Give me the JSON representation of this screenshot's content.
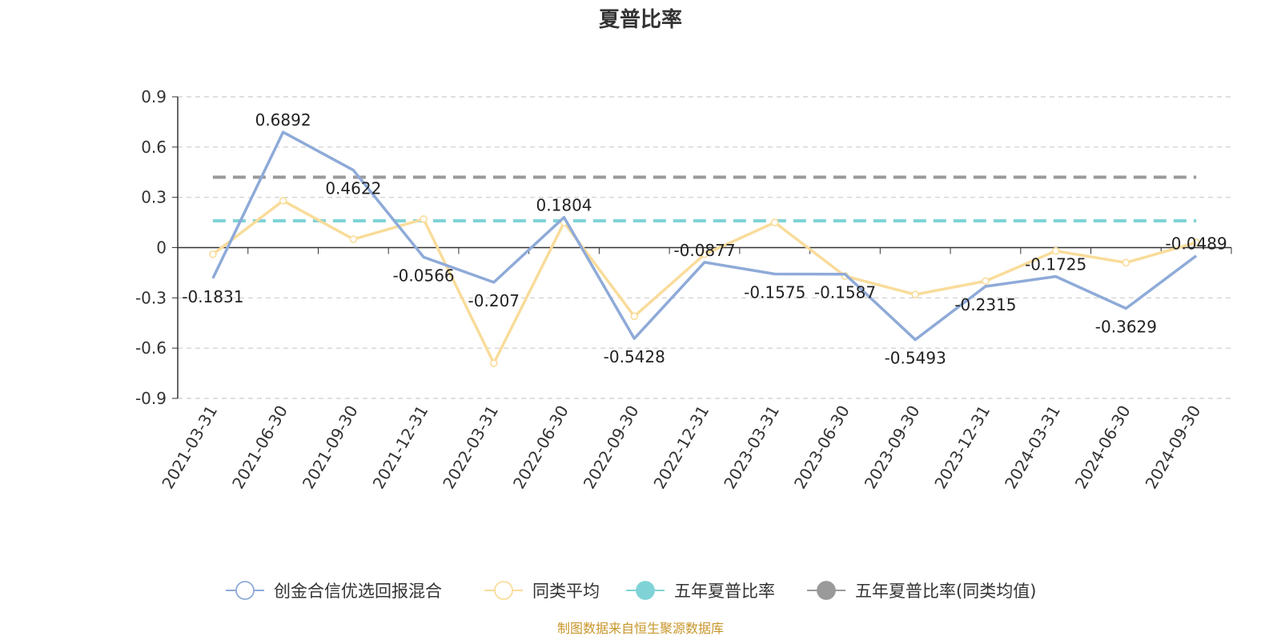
{
  "chart_data": {
    "type": "line",
    "title": "夏普比率",
    "xlabel": "",
    "ylabel": "",
    "ylim": [
      -0.9,
      0.9
    ],
    "yticks": [
      "0.9",
      "0.6",
      "0.3",
      "0",
      "-0.3",
      "-0.6",
      "-0.9"
    ],
    "ytick_values": [
      0.9,
      0.6,
      0.3,
      0,
      -0.3,
      -0.6,
      -0.9
    ],
    "grid": true,
    "legend_position": "bottom-center",
    "categories": [
      "2021-03-31",
      "2021-06-30",
      "2021-09-30",
      "2021-12-31",
      "2022-03-31",
      "2022-06-30",
      "2022-09-30",
      "2022-12-31",
      "2023-03-31",
      "2023-06-30",
      "2023-09-30",
      "2023-12-31",
      "2024-03-31",
      "2024-06-30",
      "2024-09-30"
    ],
    "series": [
      {
        "name": "创金合信优选回报混合",
        "color": "#8eaad8",
        "values": [
          -0.1831,
          0.6892,
          0.4622,
          -0.0566,
          -0.207,
          0.1804,
          -0.5428,
          -0.0877,
          -0.1575,
          -0.1587,
          -0.5493,
          -0.2315,
          -0.1725,
          -0.3629,
          -0.0489
        ],
        "labels": [
          "-0.1831",
          "0.6892",
          "0.4622",
          "-0.0566",
          "-0.207",
          "0.1804",
          "-0.5428",
          "-0.0877",
          "-0.1575",
          "-0.1587",
          "-0.5493",
          "-0.2315",
          "-0.1725",
          "-0.3629",
          "-0.0489"
        ]
      },
      {
        "name": "同类平均",
        "color": "#f9dc9a",
        "values": [
          -0.04,
          0.28,
          0.05,
          0.17,
          -0.69,
          0.15,
          -0.41,
          -0.04,
          0.15,
          -0.17,
          -0.28,
          -0.2,
          -0.02,
          -0.09,
          0.03
        ]
      }
    ],
    "reference_lines": [
      {
        "name": "五年夏普比率",
        "color": "#7fd3d6",
        "value": 0.16
      },
      {
        "name": "五年夏普比率(同类均值)",
        "color": "#9a9a9a",
        "value": 0.42
      }
    ]
  },
  "footer": {
    "source": "制图数据来自恒生聚源数据库"
  }
}
